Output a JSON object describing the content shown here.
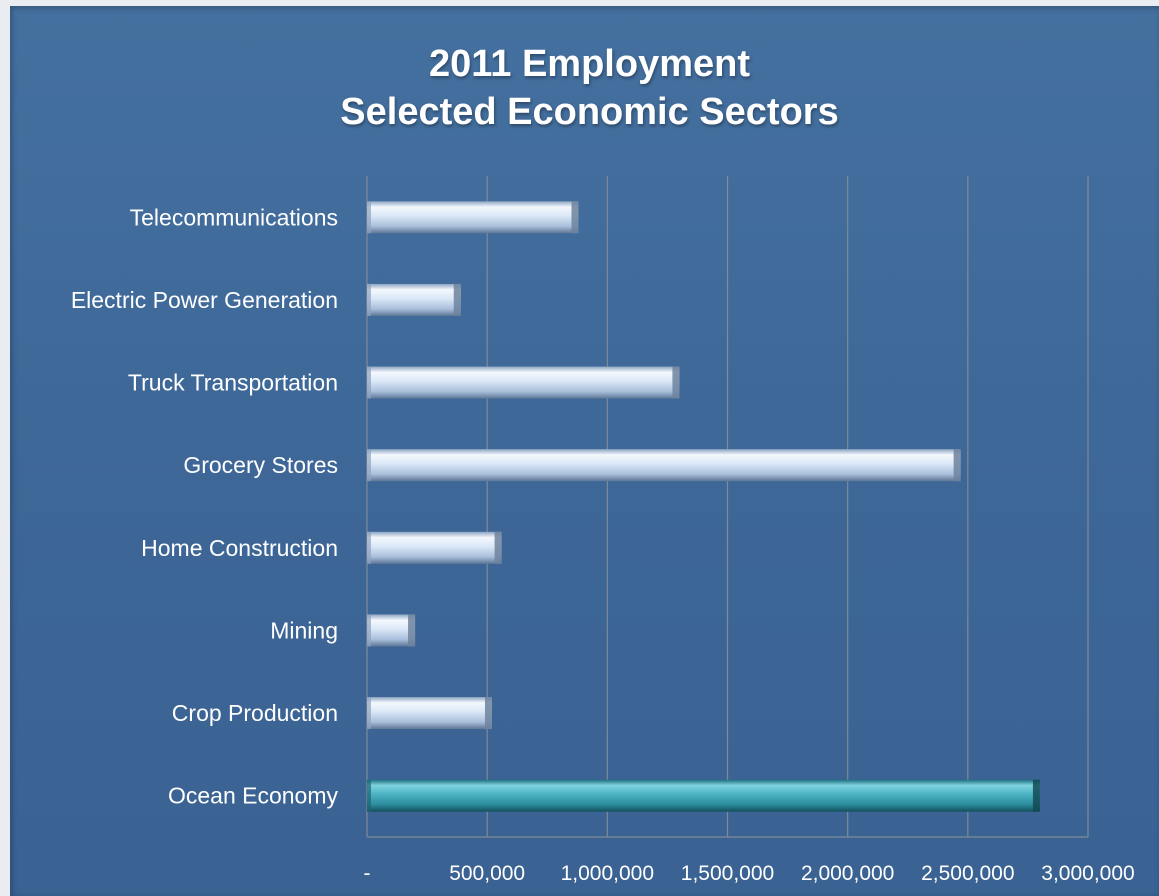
{
  "chart_data": {
    "type": "bar",
    "orientation": "horizontal",
    "title_lines": [
      "2011 Employment",
      "Selected Economic Sectors"
    ],
    "categories": [
      "Telecommunications",
      "Electric Power Generation",
      "Truck Transportation",
      "Grocery Stores",
      "Home Construction",
      "Mining",
      "Crop Production",
      "Ocean Economy"
    ],
    "values": [
      880000,
      390000,
      1300000,
      2470000,
      560000,
      200000,
      520000,
      2800000
    ],
    "highlight_category": "Ocean Economy",
    "xlim": [
      0,
      3000000
    ],
    "x_ticks": [
      0,
      500000,
      1000000,
      1500000,
      2000000,
      2500000,
      3000000
    ],
    "x_tick_labels": [
      "-",
      "500,000",
      "1,000,000",
      "1,500,000",
      "2,000,000",
      "2,500,000",
      "3,000,000"
    ],
    "grid": "vertical",
    "legend": "none",
    "colors": {
      "background": "#3e6898",
      "bar": "#c9dcf3",
      "highlight_bar": "#3aa3b5",
      "gridline": "#7f8b96"
    }
  }
}
